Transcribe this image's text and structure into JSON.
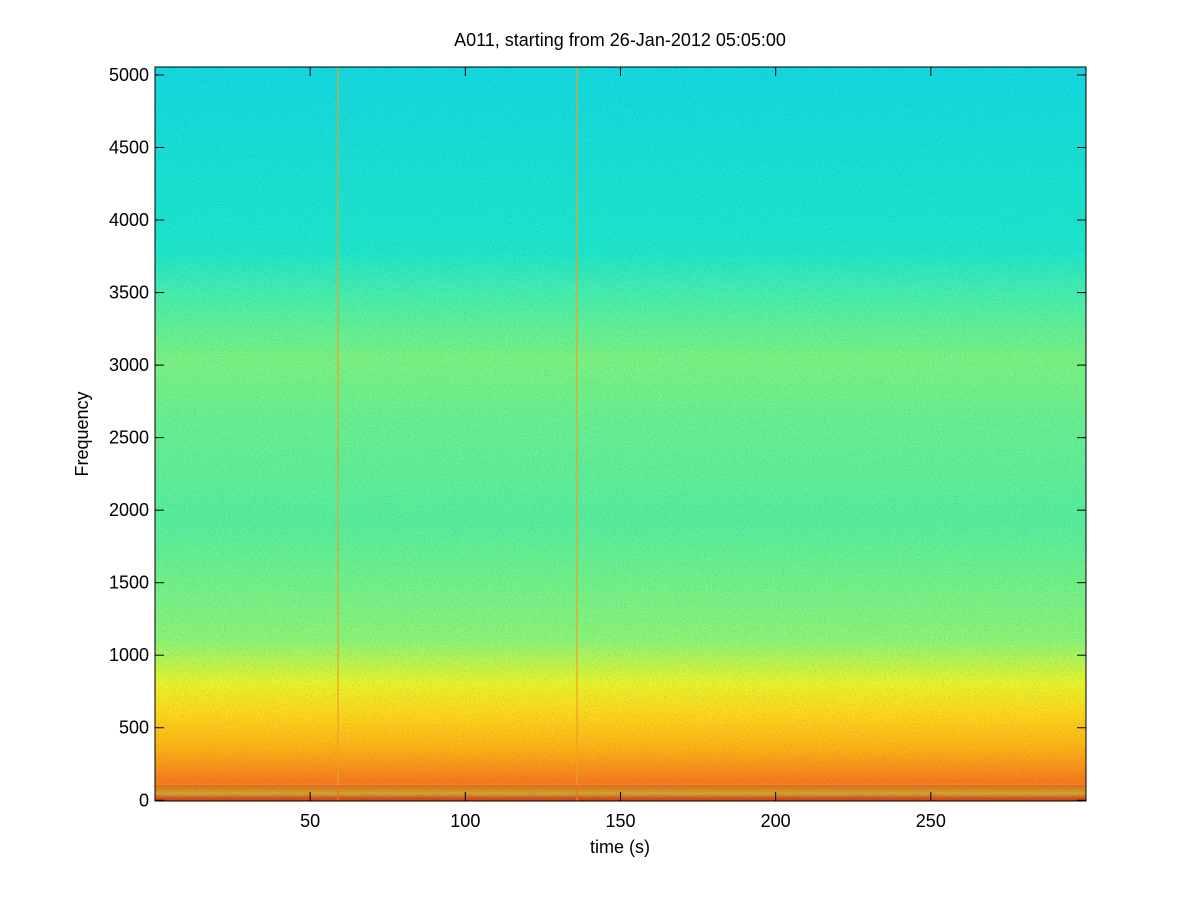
{
  "chart_data": {
    "type": "spectrogram",
    "title": "A011, starting from 26-Jan-2012 05:05:00",
    "x_label": "time (s)",
    "y_label": "Frequency",
    "xlim": [
      0,
      300
    ],
    "xticks": [
      50,
      100,
      150,
      200,
      250
    ],
    "ylim": [
      -5,
      5055
    ],
    "yticks": [
      0,
      500,
      1000,
      1500,
      2000,
      2500,
      3000,
      3500,
      4000,
      4500,
      5000
    ]
  }
}
